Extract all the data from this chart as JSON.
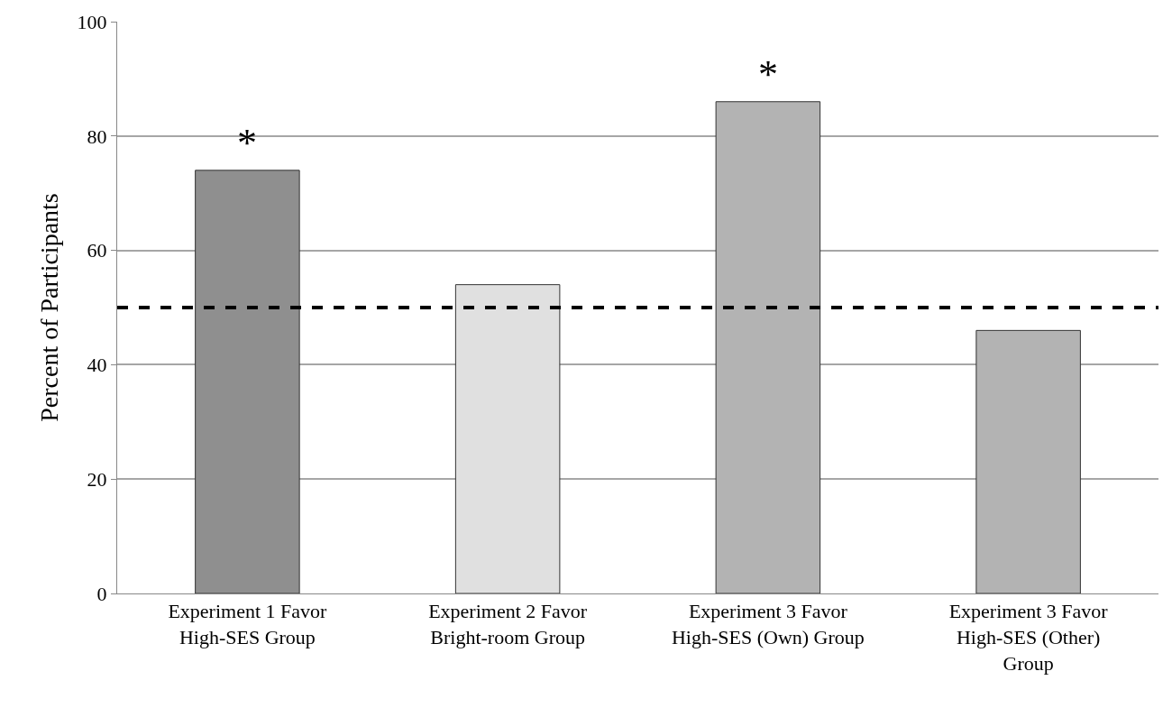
{
  "chart_data": {
    "type": "bar",
    "ylabel": "Percent of Participants",
    "categories": [
      "Experiment 1 Favor High-SES Group",
      "Experiment 2 Favor Bright-room Group",
      "Experiment 3 Favor High-SES (Own) Group",
      "Experiment 3 Favor High-SES (Other) Group"
    ],
    "values": [
      74,
      54,
      86,
      46
    ],
    "colors": [
      "#8f8f8f",
      "#e0e0e0",
      "#b3b3b3",
      "#b3b3b3"
    ],
    "ylim": [
      0,
      100
    ],
    "yticks": [
      0,
      20,
      40,
      60,
      80,
      100
    ],
    "grid": "y",
    "ref_lines": [
      {
        "axis": "y",
        "value": 50,
        "color": "#000000",
        "line_style": "dashed"
      }
    ],
    "annotations": [
      {
        "text": "*",
        "x": "Experiment 1 Favor High-SES Group",
        "y": 74
      },
      {
        "text": "*",
        "x": "Experiment 3 Favor High-SES (Own) Group",
        "y": 86
      }
    ]
  }
}
